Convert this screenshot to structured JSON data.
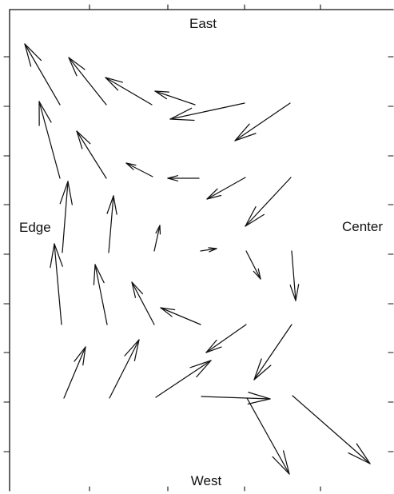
{
  "labels": {
    "top": "East",
    "bottom": "West",
    "left": "Edge",
    "right": "Center"
  },
  "stroke_color": "#111111",
  "background_color": "#ffffff"
}
